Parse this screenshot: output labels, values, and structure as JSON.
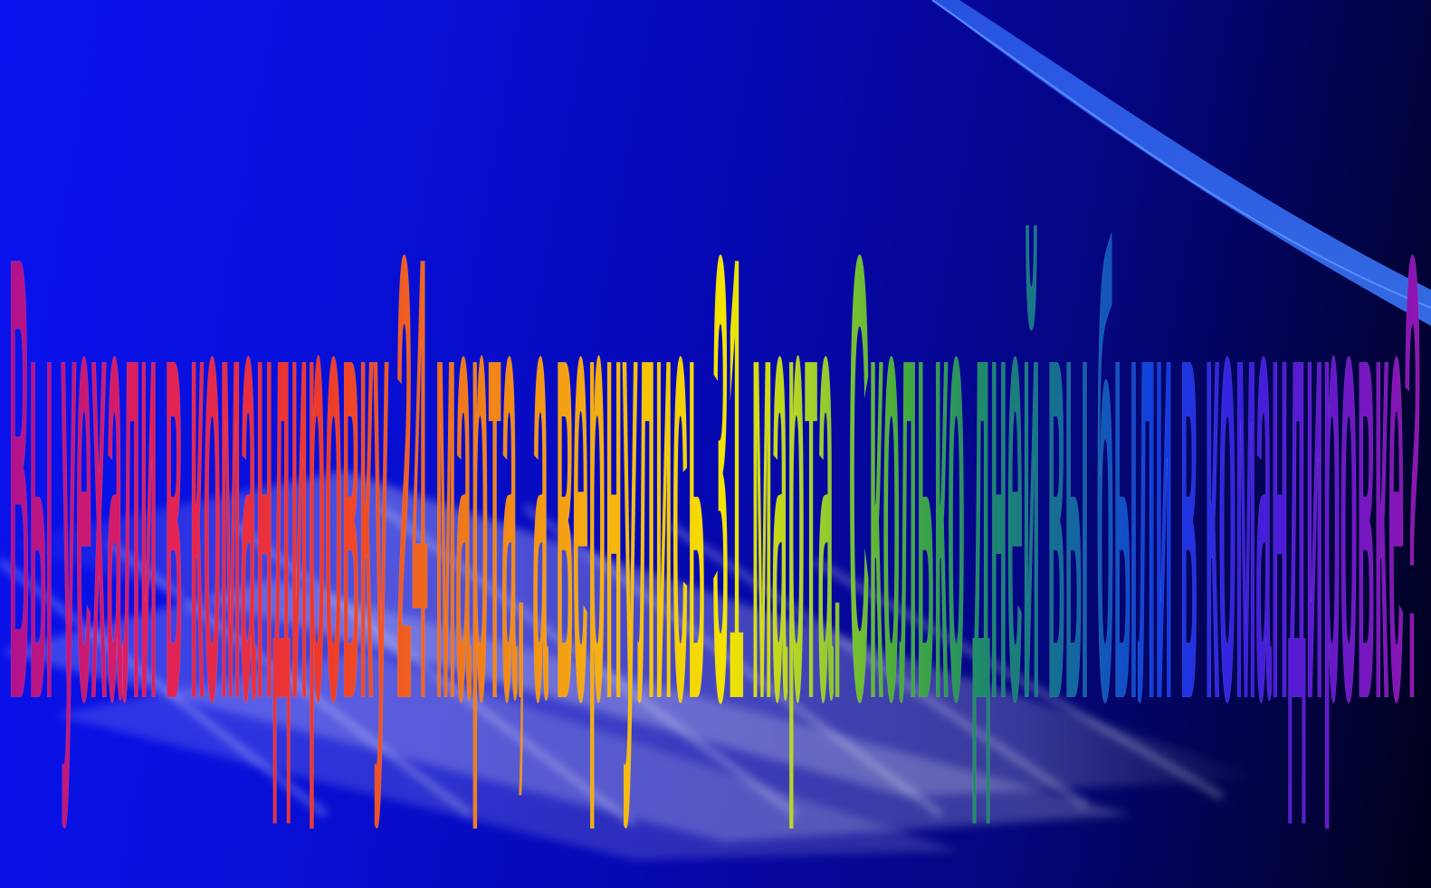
{
  "slide": {
    "title_text": "Вы уехали в командировку 24 марта, а вернулись 31 марта. Сколько дней вы были в командировке?"
  },
  "colors": {
    "background_left": "#0a12f0",
    "background_right": "#000018",
    "text_outline": "#f4f4f4",
    "rainbow": [
      "#b0128e",
      "#e0205a",
      "#ee3a2a",
      "#f07a1a",
      "#f6b410",
      "#f4e400",
      "#a6d22a",
      "#4aae3a",
      "#1e8a6a",
      "#146a9a",
      "#1040e0",
      "#3a20e0",
      "#6a18c8",
      "#9a14a8"
    ]
  }
}
